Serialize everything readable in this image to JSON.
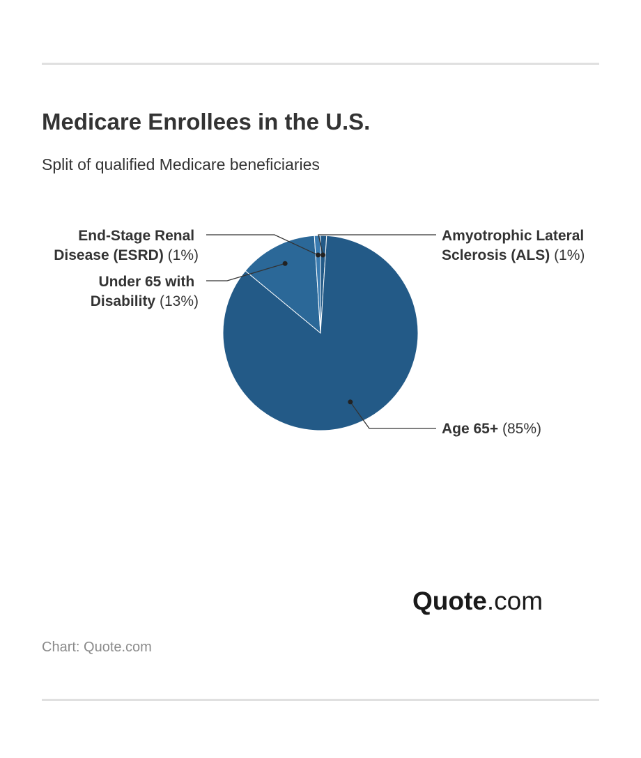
{
  "title": "Medicare Enrollees in the U.S.",
  "subtitle": "Split of qualified Medicare beneficiaries",
  "source": "Chart: Quote.com",
  "logo": {
    "bold": "Quote",
    "rest": ".com"
  },
  "colors": {
    "primary": "#235a87",
    "secondary": "#2b6898",
    "tertiary": "#3a7bb0",
    "text": "#333333",
    "rule": "#e0e0e0"
  },
  "chart_data": {
    "type": "pie",
    "title": "Medicare Enrollees in the U.S.",
    "subtitle": "Split of qualified Medicare beneficiaries",
    "slices": [
      {
        "label": "Age 65+",
        "value": 85,
        "display": "(85%)",
        "color": "#235a87"
      },
      {
        "label": "Under 65 with Disability",
        "value": 13,
        "display": "(13%)",
        "color": "#2b6898"
      },
      {
        "label": "End-Stage Renal Disease (ESRD)",
        "value": 1,
        "display": "(1%)",
        "color": "#3a7bb0"
      },
      {
        "label": "Amyotrophic Lateral Sclerosis (ALS)",
        "value": 1,
        "display": "(1%)",
        "color": "#235a87"
      }
    ]
  }
}
